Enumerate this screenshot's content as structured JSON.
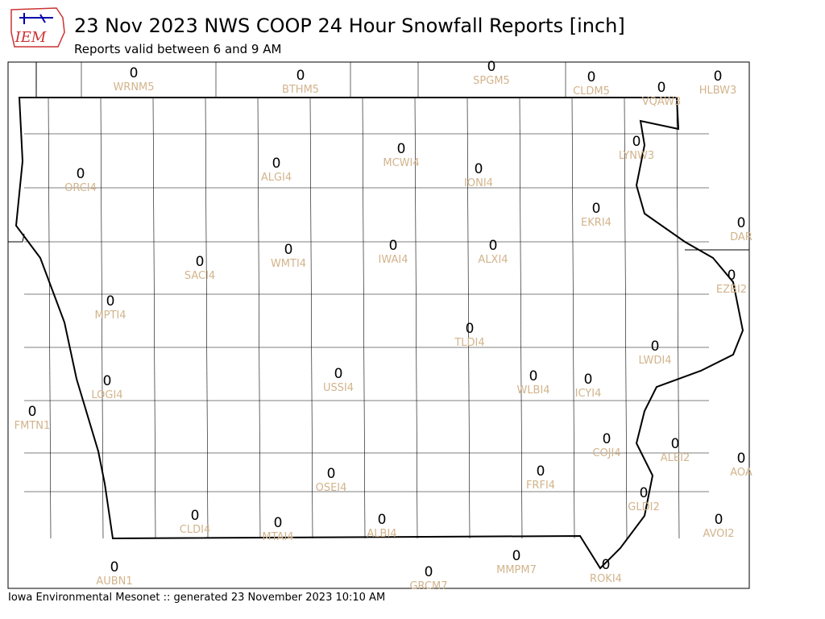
{
  "header": {
    "logo_text": "IEM",
    "title": "23 Nov 2023 NWS COOP 24 Hour Snowfall Reports [inch]",
    "subtitle": "Reports valid between 6 and 9 AM"
  },
  "stations": [
    {
      "id": "WRNM5",
      "value": 0
    },
    {
      "id": "BTHM5",
      "value": 0
    },
    {
      "id": "SPGM5",
      "value": 0
    },
    {
      "id": "CLDM5",
      "value": 0
    },
    {
      "id": "VQAW3",
      "value": 0
    },
    {
      "id": "HLBW3",
      "value": 0
    },
    {
      "id": "LYNW3",
      "value": 0
    },
    {
      "id": "ORCI4",
      "value": 0
    },
    {
      "id": "ALGI4",
      "value": 0
    },
    {
      "id": "MCWI4",
      "value": 0
    },
    {
      "id": "IONI4",
      "value": 0
    },
    {
      "id": "EKRI4",
      "value": 0
    },
    {
      "id": "DAR",
      "value": 0
    },
    {
      "id": "SACI4",
      "value": 0
    },
    {
      "id": "WMTI4",
      "value": 0
    },
    {
      "id": "IWAI4",
      "value": 0
    },
    {
      "id": "ALXI4",
      "value": 0
    },
    {
      "id": "EZBI2",
      "value": 0
    },
    {
      "id": "MPTI4",
      "value": 0
    },
    {
      "id": "TLDI4",
      "value": 0
    },
    {
      "id": "LWDI4",
      "value": 0
    },
    {
      "id": "LOGI4",
      "value": 0
    },
    {
      "id": "USSI4",
      "value": 0
    },
    {
      "id": "WLBI4",
      "value": 0
    },
    {
      "id": "ICYI4",
      "value": 0
    },
    {
      "id": "FMTN1",
      "value": 0
    },
    {
      "id": "COJI4",
      "value": 0
    },
    {
      "id": "ALEI2",
      "value": 0
    },
    {
      "id": "AOA",
      "value": 0
    },
    {
      "id": "OSEI4",
      "value": 0
    },
    {
      "id": "FRFI4",
      "value": 0
    },
    {
      "id": "GLDI2",
      "value": 0
    },
    {
      "id": "CLDI4",
      "value": 0
    },
    {
      "id": "MTAI4",
      "value": 0
    },
    {
      "id": "ALBI4",
      "value": 0
    },
    {
      "id": "AVOI2",
      "value": 0
    },
    {
      "id": "MMPM7",
      "value": 0
    },
    {
      "id": "AUBN1",
      "value": 0
    },
    {
      "id": "GRCM7",
      "value": 0
    },
    {
      "id": "ROKI4",
      "value": 0
    }
  ],
  "footer": "Iowa Environmental Mesonet :: generated 23 November 2023 10:10 AM"
}
